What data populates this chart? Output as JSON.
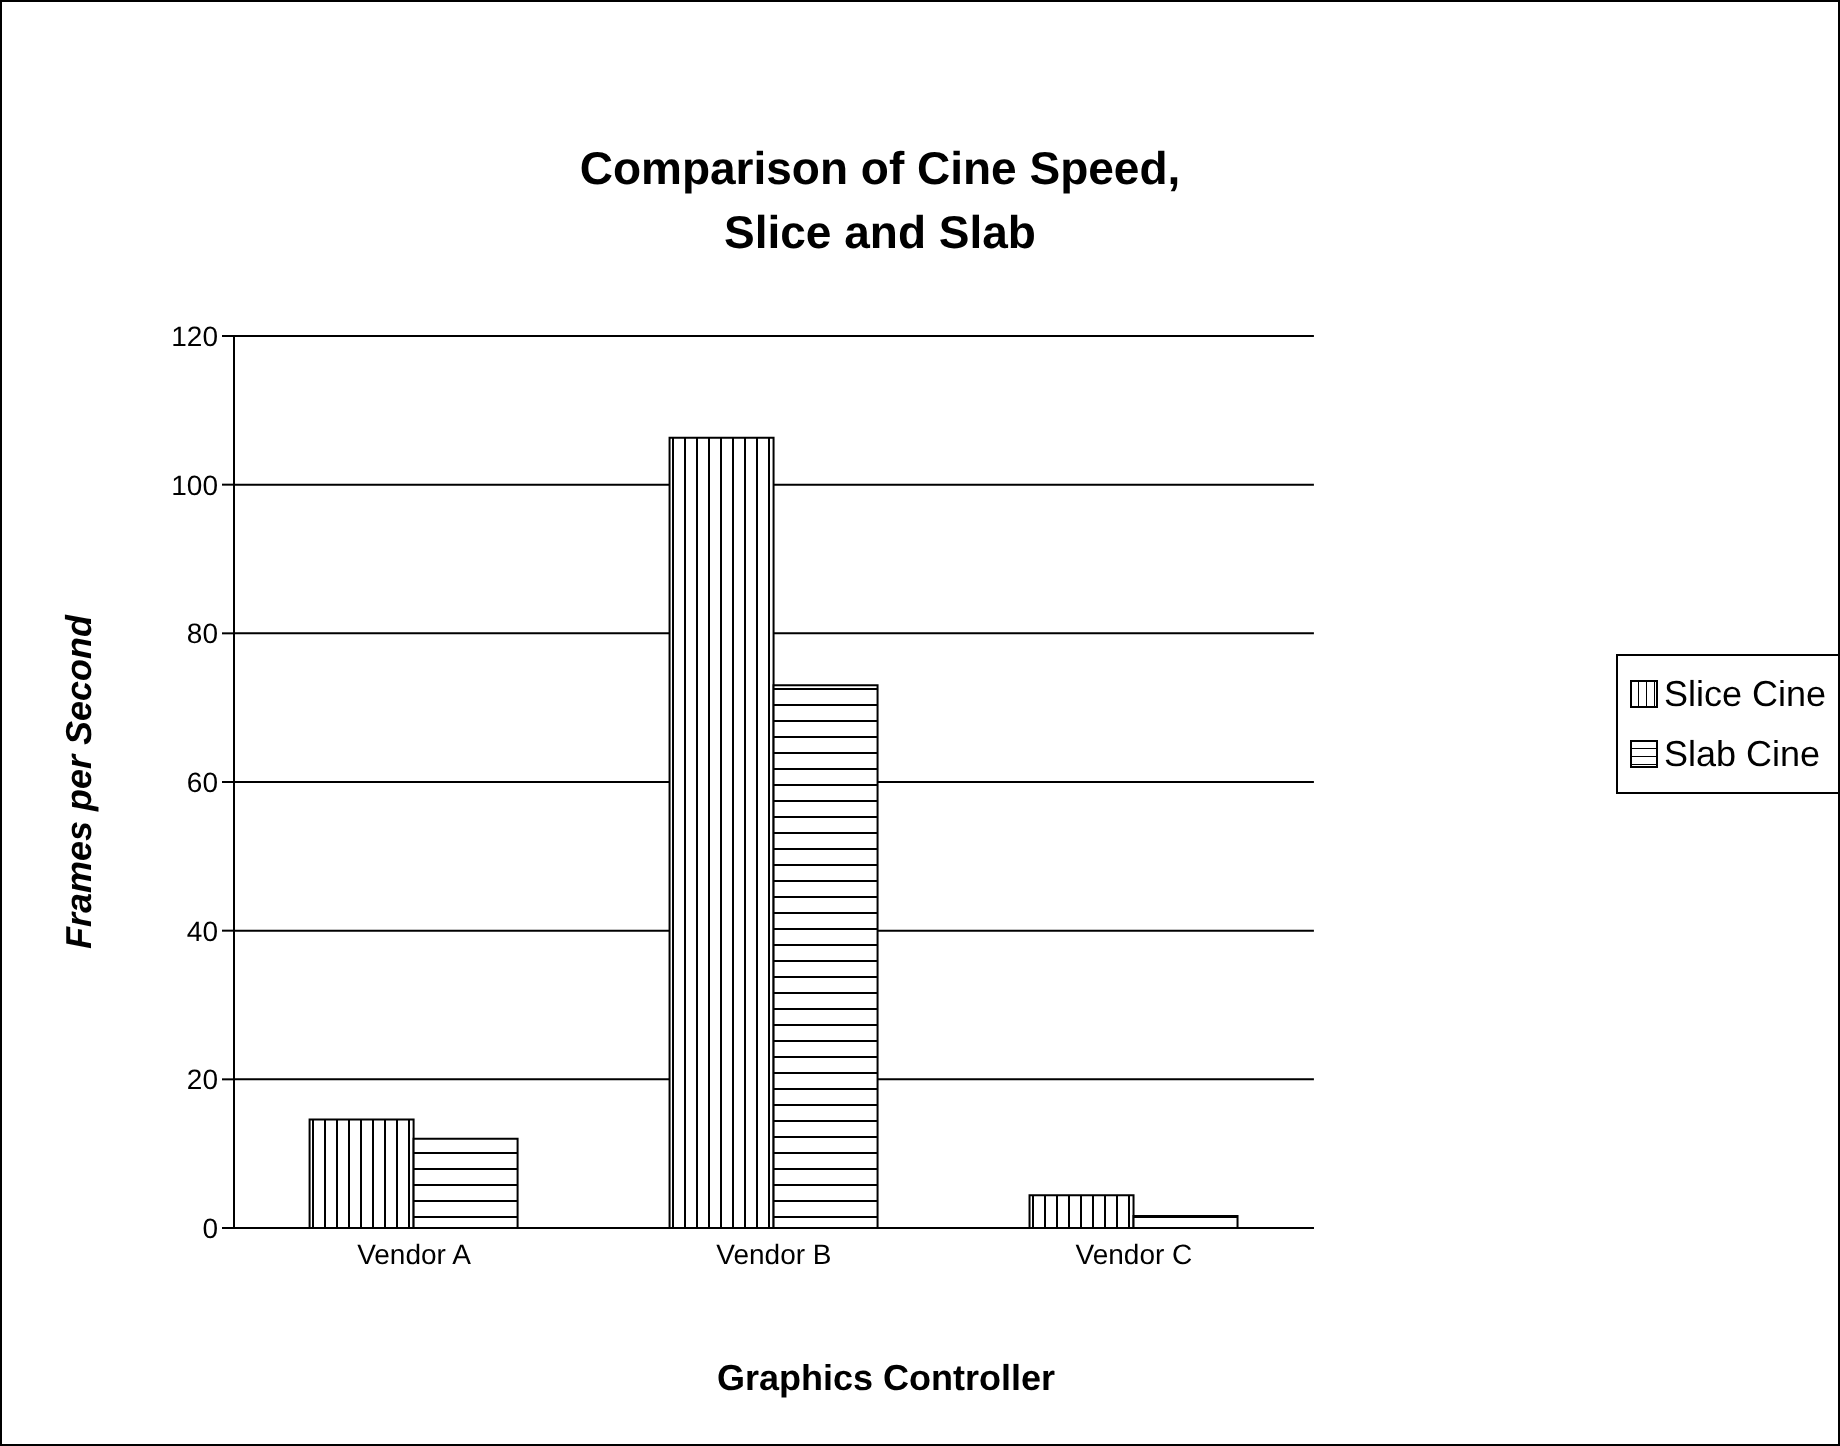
{
  "chart_data": {
    "type": "bar",
    "title": "Comparison of Cine Speed,\nSlice and Slab",
    "xlabel": "Graphics Controller",
    "ylabel": "Frames per Second",
    "categories": [
      "Vendor A",
      "Vendor B",
      "Vendor C"
    ],
    "series": [
      {
        "name": "Slice Cine",
        "color": "#000000",
        "values": [
          14.6,
          106.3,
          4.4
        ]
      },
      {
        "name": "Slab Cine",
        "color": "#000000",
        "values": [
          12.0,
          73.0,
          1.6
        ]
      }
    ],
    "ylim": [
      0,
      120
    ],
    "yticks": [
      0,
      20,
      40,
      60,
      80,
      100,
      120
    ],
    "grid": "y",
    "legend": "right"
  }
}
